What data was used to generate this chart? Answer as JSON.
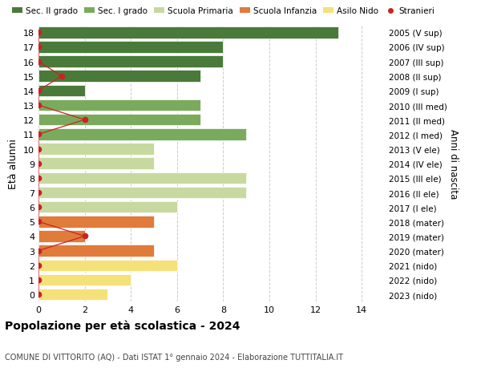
{
  "ages": [
    0,
    1,
    2,
    3,
    4,
    5,
    6,
    7,
    8,
    9,
    10,
    11,
    12,
    13,
    14,
    15,
    16,
    17,
    18
  ],
  "right_labels": [
    "2023 (nido)",
    "2022 (nido)",
    "2021 (nido)",
    "2020 (mater)",
    "2019 (mater)",
    "2018 (mater)",
    "2017 (I ele)",
    "2016 (II ele)",
    "2015 (III ele)",
    "2014 (IV ele)",
    "2013 (V ele)",
    "2012 (I med)",
    "2011 (II med)",
    "2010 (III med)",
    "2009 (I sup)",
    "2008 (II sup)",
    "2007 (III sup)",
    "2006 (IV sup)",
    "2005 (V sup)"
  ],
  "bar_values": [
    3,
    4,
    6,
    5,
    2,
    5,
    6,
    9,
    9,
    5,
    5,
    9,
    7,
    7,
    2,
    7,
    8,
    8,
    13
  ],
  "bar_colors": [
    "#f5e17a",
    "#f5e17a",
    "#f5e17a",
    "#e07b3a",
    "#e07b3a",
    "#e07b3a",
    "#c8d9a0",
    "#c8d9a0",
    "#c8d9a0",
    "#c8d9a0",
    "#c8d9a0",
    "#7aab5c",
    "#7aab5c",
    "#7aab5c",
    "#4a7a3a",
    "#4a7a3a",
    "#4a7a3a",
    "#4a7a3a",
    "#4a7a3a"
  ],
  "stranieri_values": [
    0,
    0,
    0,
    0,
    2,
    0,
    0,
    0,
    0,
    0,
    0,
    0,
    2,
    0,
    0,
    1,
    0,
    0,
    0
  ],
  "title1": "Popolazione per età scolastica - 2024",
  "title2": "COMUNE DI VITTORITO (AQ) - Dati ISTAT 1° gennaio 2024 - Elaborazione TUTTITALIA.IT",
  "ylabel": "Età alunni",
  "ylabel_right": "Anni di nascita",
  "xlim": [
    0,
    15
  ],
  "xticks": [
    0,
    2,
    4,
    6,
    8,
    10,
    12,
    14
  ],
  "legend_labels": [
    "Sec. II grado",
    "Sec. I grado",
    "Scuola Primaria",
    "Scuola Infanzia",
    "Asilo Nido",
    "Stranieri"
  ],
  "legend_colors": [
    "#4a7a3a",
    "#7aab5c",
    "#c8d9a0",
    "#e07b3a",
    "#f5e17a",
    "#cc2222"
  ],
  "bg_color": "#ffffff",
  "grid_color": "#cccccc",
  "bar_height": 0.8
}
